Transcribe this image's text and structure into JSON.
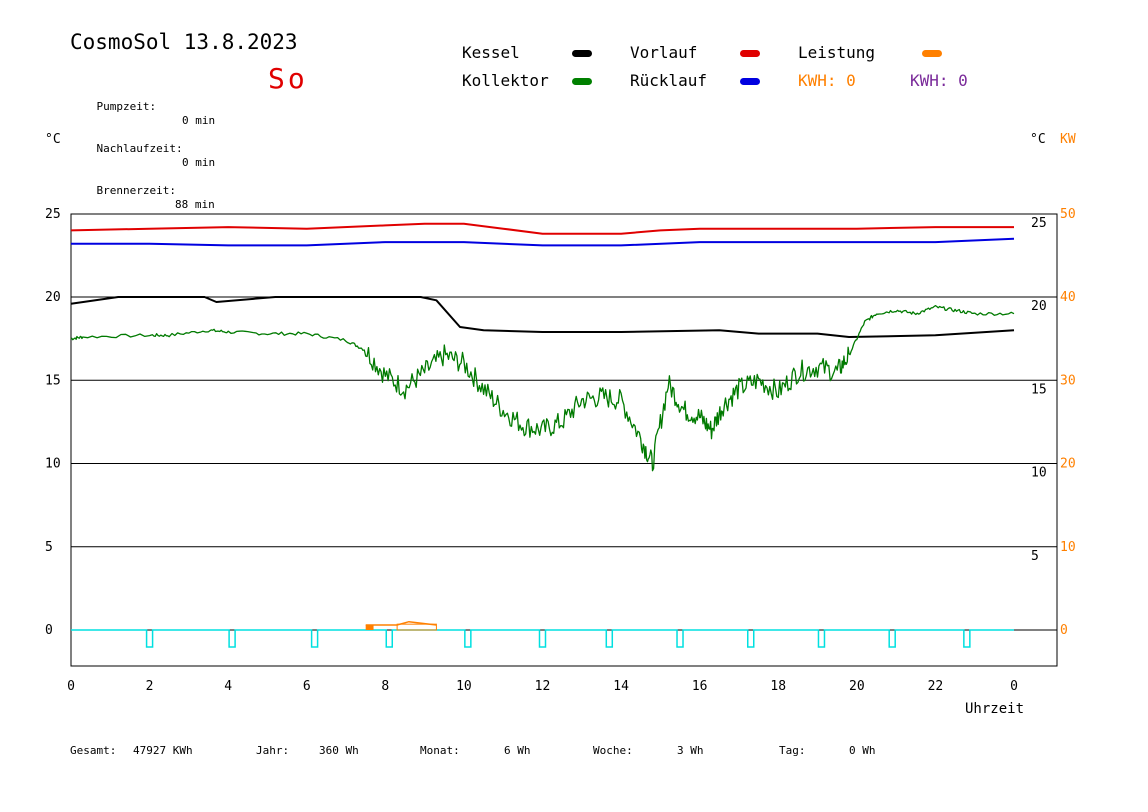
{
  "header": {
    "title": "CosmoSol 13.8.2023",
    "day": "So",
    "info": [
      {
        "label": "Pumpzeit:",
        "value": "0 min"
      },
      {
        "label": "Nachlaufzeit:",
        "value": "0 min"
      },
      {
        "label": "Brennerzeit:",
        "value": "88 min"
      }
    ]
  },
  "legend": {
    "items": [
      {
        "label": "Kessel",
        "color": "#000000"
      },
      {
        "label": "Vorlauf",
        "color": "#e00000"
      },
      {
        "label": "Leistung",
        "color": "#ff8000"
      },
      {
        "label": "Kollektor",
        "color": "#008000"
      },
      {
        "label": "Rücklauf",
        "color": "#0000e0"
      }
    ],
    "kwh_orange": "KWH: 0",
    "kwh_purple": "KWH: 0"
  },
  "axes": {
    "left_unit": "°C",
    "right_unit": "°C",
    "right_unit2": "KW",
    "xlabel": "Uhrzeit"
  },
  "footer": {
    "gesamt_label": "Gesamt:",
    "gesamt_value": "47927 KWh",
    "jahr_label": "Jahr:",
    "jahr_value": "360 Wh",
    "monat_label": "Monat:",
    "monat_value": "6 Wh",
    "woche_label": "Woche:",
    "woche_value": "3 Wh",
    "tag_label": "Tag:",
    "tag_value": "0 Wh"
  },
  "colors": {
    "kessel": "#000000",
    "vorlauf": "#e00000",
    "ruecklauf": "#0000e0",
    "kollektor": "#007a00",
    "leistung": "#ff8000",
    "pumpe": "#00e0e0",
    "kwh2": "#7a2a9a"
  },
  "chart_data": {
    "type": "line",
    "xlim": [
      0,
      24
    ],
    "ylim": [
      -2,
      25.5
    ],
    "x_ticks": [
      "0",
      "2",
      "4",
      "6",
      "8",
      "10",
      "12",
      "14",
      "16",
      "18",
      "20",
      "22",
      "0"
    ],
    "y_ticks_left": [
      "25",
      "20",
      "15",
      "10",
      "5",
      "0"
    ],
    "y_ticks_right_temp": [
      "25",
      "20",
      "15",
      "10",
      "5"
    ],
    "y_ticks_right_kw": [
      "50",
      "40",
      "30",
      "20",
      "10",
      "0"
    ],
    "series": [
      {
        "name": "Vorlauf",
        "x": [
          0,
          2,
          4,
          6,
          8,
          9,
          10,
          11,
          12,
          13,
          14,
          15,
          16,
          18,
          20,
          22,
          24
        ],
        "values": [
          24.0,
          24.1,
          24.2,
          24.1,
          24.3,
          24.4,
          24.4,
          24.1,
          23.8,
          23.8,
          23.8,
          24.0,
          24.1,
          24.1,
          24.1,
          24.2,
          24.2
        ]
      },
      {
        "name": "Rücklauf",
        "x": [
          0,
          2,
          4,
          6,
          8,
          10,
          12,
          14,
          16,
          18,
          20,
          22,
          24
        ],
        "values": [
          23.2,
          23.2,
          23.1,
          23.1,
          23.3,
          23.3,
          23.1,
          23.1,
          23.3,
          23.3,
          23.3,
          23.3,
          23.5
        ]
      },
      {
        "name": "Kessel",
        "x": [
          0,
          1.2,
          3.4,
          3.7,
          5.2,
          7.5,
          8.9,
          9.3,
          9.9,
          10.5,
          12,
          14,
          16.5,
          17.5,
          19,
          19.8,
          22,
          24
        ],
        "values": [
          19.6,
          20.0,
          20.0,
          19.7,
          20.0,
          20.0,
          20.0,
          19.8,
          18.2,
          18.0,
          17.9,
          17.9,
          18.0,
          17.8,
          17.8,
          17.6,
          17.7,
          18.0
        ]
      },
      {
        "name": "Kollektor",
        "x": [
          0,
          0.3,
          2,
          2.5,
          3.5,
          4,
          5,
          6,
          7,
          7.5,
          8,
          8.5,
          9,
          9.5,
          10,
          10.5,
          11,
          11.5,
          12,
          12.5,
          13,
          13.5,
          14,
          14.5,
          14.8,
          15.2,
          15.6,
          16,
          16.3,
          16.6,
          17,
          17.5,
          18,
          18.5,
          19,
          19.5,
          19.8,
          20.2,
          20.5,
          21,
          21.5,
          22,
          22.5,
          23,
          24
        ],
        "values": [
          17.5,
          17.6,
          17.7,
          17.7,
          18.0,
          17.9,
          17.8,
          17.8,
          17.4,
          16.8,
          15.3,
          14.5,
          15.5,
          16.5,
          16.0,
          14.5,
          13.2,
          12.3,
          12.0,
          12.5,
          13.8,
          14.0,
          13.8,
          11.5,
          10.0,
          14.8,
          13.2,
          12.8,
          12.0,
          13.5,
          14.5,
          15.0,
          14.3,
          15.5,
          15.8,
          15.5,
          16.5,
          18.5,
          19.0,
          19.2,
          19.0,
          19.4,
          19.2,
          19.0,
          19.0
        ]
      },
      {
        "name": "Leistung",
        "x": [
          7.5,
          7.7,
          8.3,
          8.6,
          9.3
        ],
        "values": [
          0.3,
          0.3,
          0.3,
          0.5,
          0.3
        ]
      }
    ],
    "pump_pulses_h": [
      2.0,
      4.1,
      6.2,
      8.1,
      10.1,
      12.0,
      13.7,
      15.5,
      17.3,
      19.1,
      20.9,
      22.8
    ],
    "grid": true,
    "legend_position": "top"
  }
}
